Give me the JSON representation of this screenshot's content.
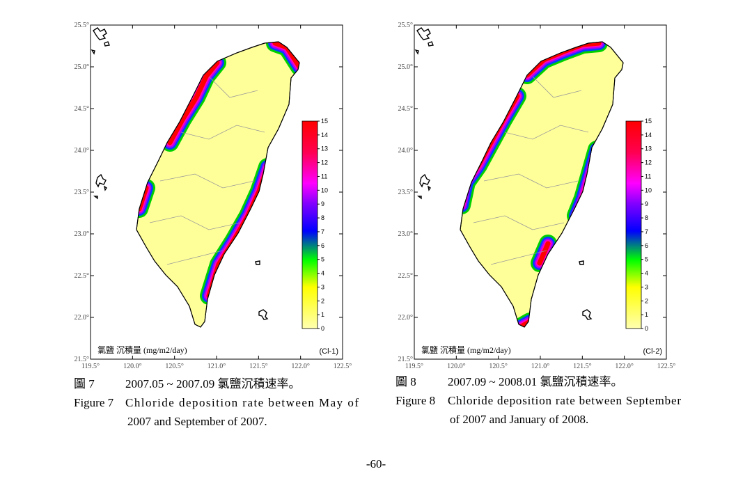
{
  "figures": [
    {
      "map": {
        "yticks": [
          "25.5°",
          "25.0°",
          "24.5°",
          "24.0°",
          "23.5°",
          "23.0°",
          "22.5°",
          "22.0°",
          "21.5°"
        ],
        "xticks": [
          "119.5°",
          "120.0°",
          "120.5°",
          "121.0°",
          "121.5°",
          "122.0°",
          "122.5°"
        ],
        "colorbar_ticks": [
          0,
          1,
          2,
          3,
          4,
          5,
          6,
          7,
          8,
          9,
          10,
          11,
          12,
          13,
          14,
          15
        ],
        "unit_label": "氯鹽 沉積量 (mg/m2/day)",
        "code": "(Cl-1)"
      },
      "caption": {
        "zh_label": "圖 7",
        "zh_text": "2007.05 ~ 2007.09 氯鹽沉積速率。",
        "en_label": "Figure 7",
        "en_lines": [
          "Chloride deposition rate between May of",
          "2007 and September of 2007."
        ]
      }
    },
    {
      "map": {
        "yticks": [
          "25.5°",
          "25.0°",
          "24.5°",
          "24.0°",
          "23.5°",
          "23.0°",
          "22.5°",
          "22.0°",
          "21.5°"
        ],
        "xticks": [
          "119.5°",
          "120.0°",
          "120.5°",
          "121.0°",
          "121.5°",
          "122.0°",
          "122.5°"
        ],
        "colorbar_ticks": [
          0,
          1,
          2,
          3,
          4,
          5,
          6,
          7,
          8,
          9,
          10,
          11,
          12,
          13,
          14,
          15
        ],
        "unit_label": "氯鹽 沉積量 (mg/m2/day)",
        "code": "(Cl-2)"
      },
      "caption": {
        "zh_label": "圖 8",
        "zh_text": "2007.09 ~ 2008.01 氯鹽沉積速率。",
        "en_label": "Figure 8",
        "en_lines": [
          "Chloride deposition rate between September",
          "of 2007 and January of 2008."
        ]
      }
    }
  ],
  "page_number": "-60-"
}
